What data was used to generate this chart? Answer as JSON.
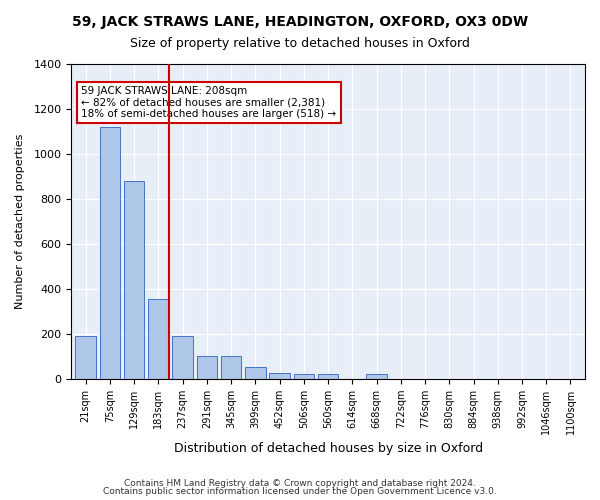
{
  "title1": "59, JACK STRAWS LANE, HEADINGTON, OXFORD, OX3 0DW",
  "title2": "Size of property relative to detached houses in Oxford",
  "xlabel": "Distribution of detached houses by size in Oxford",
  "ylabel": "Number of detached properties",
  "footer1": "Contains HM Land Registry data © Crown copyright and database right 2024.",
  "footer2": "Contains public sector information licensed under the Open Government Licence v3.0.",
  "annotation_line1": "59 JACK STRAWS LANE: 208sqm",
  "annotation_line2": "← 82% of detached houses are smaller (2,381)",
  "annotation_line3": "18% of semi-detached houses are larger (518) →",
  "bar_labels": [
    "21sqm",
    "75sqm",
    "129sqm",
    "183sqm",
    "237sqm",
    "291sqm",
    "345sqm",
    "399sqm",
    "452sqm",
    "506sqm",
    "560sqm",
    "614sqm",
    "668sqm",
    "722sqm",
    "776sqm",
    "830sqm",
    "884sqm",
    "938sqm",
    "992sqm",
    "1046sqm",
    "1100sqm"
  ],
  "bar_heights": [
    190,
    1120,
    880,
    355,
    190,
    100,
    100,
    50,
    25,
    20,
    20,
    0,
    20,
    0,
    0,
    0,
    0,
    0,
    0,
    0,
    0
  ],
  "bar_color": "#aec6e8",
  "bar_edge_color": "#4472c4",
  "red_line_x": 3.5,
  "property_size_sqm": 208,
  "ylim": [
    0,
    1400
  ],
  "yticks": [
    0,
    200,
    400,
    600,
    800,
    1000,
    1200,
    1400
  ],
  "background_color": "#e8eef7",
  "plot_background_color": "#e8eef7"
}
